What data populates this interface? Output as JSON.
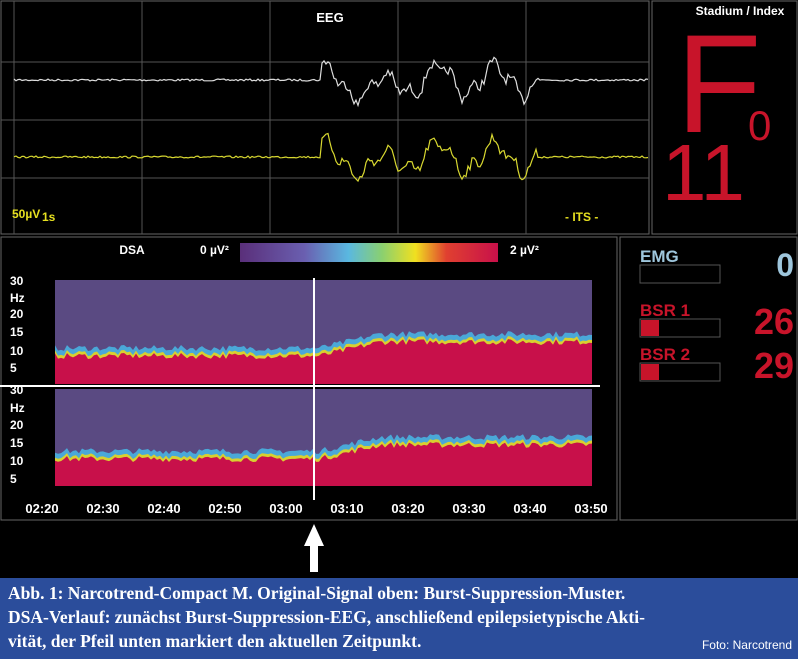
{
  "eeg": {
    "title": "EEG",
    "scale_amplitude": "50µV",
    "scale_time": "1s",
    "brand": "- ITS -"
  },
  "stage": {
    "title": "Stadium / Index",
    "stage": "F",
    "stage_sub": "0",
    "index": "11"
  },
  "dsa": {
    "title": "DSA",
    "scale_min": "0 µV²",
    "scale_max": "2 µV²",
    "y_labels": [
      "30",
      "Hz",
      "20",
      "15",
      "10",
      "5"
    ],
    "x_labels": [
      "02:20",
      "02:30",
      "02:40",
      "02:50",
      "03:00",
      "03:10",
      "03:20",
      "03:30",
      "03:40",
      "03:50"
    ]
  },
  "monitors": [
    {
      "label": "EMG",
      "value": "0"
    },
    {
      "label": "BSR 1",
      "value": "26"
    },
    {
      "label": "BSR 2",
      "value": "29"
    }
  ],
  "caption": {
    "lines": [
      "Abb. 1: Narcotrend-Compact M. Original-Signal oben: Burst-Suppression-Muster.",
      "DSA-Verlauf: zunächst Burst-Suppression-EEG, anschließend epilepsietypische Akti-",
      "vität, der Pfeil unten markiert den aktuellen Zeitpunkt."
    ],
    "credit": "Foto: Narcotrend"
  }
}
